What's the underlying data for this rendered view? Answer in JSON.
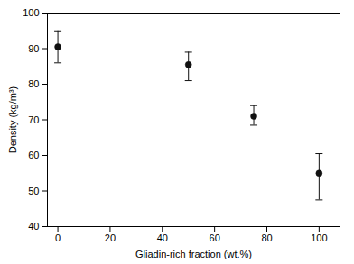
{
  "chart_data": {
    "type": "scatter",
    "x": [
      0,
      50,
      75,
      100
    ],
    "values": [
      90.5,
      85.5,
      71.0,
      55.0
    ],
    "yerr_upper": [
      4.5,
      3.5,
      3.0,
      5.5
    ],
    "yerr_lower": [
      4.5,
      4.5,
      2.5,
      7.5
    ],
    "xlabel": "Gliadin-rich fraction (wt.%)",
    "ylabel": "Density (kg/m³)",
    "xlim": [
      -4,
      108
    ],
    "ylim": [
      40,
      100
    ],
    "xticks": [
      0,
      20,
      40,
      60,
      80,
      100
    ],
    "yticks": [
      40,
      50,
      60,
      70,
      80,
      90,
      100
    ],
    "color": "#111111",
    "marker": "circle",
    "grid": false
  }
}
